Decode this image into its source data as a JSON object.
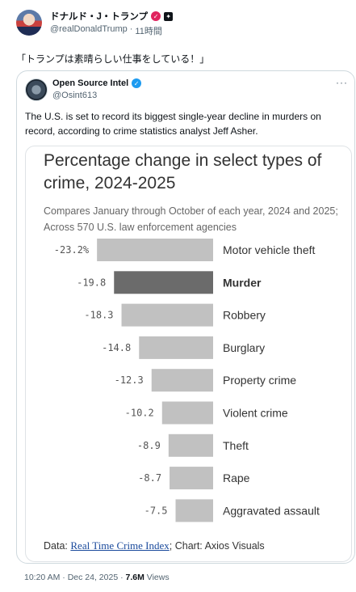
{
  "post": {
    "author": "ドナルド・J・トランプ",
    "handle": "@realDonaldTrump",
    "time_ago": "11時間",
    "text": "「トランプは素晴らしい仕事をしている！」",
    "timestamp": "10:20 AM · Dec 24, 2025 ·",
    "views_count": "7.6M",
    "views_label": "Views",
    "separator": "·"
  },
  "quote": {
    "name": "Open Source Intel",
    "handle": "@Osint613",
    "more": "···",
    "text": "The U.S. is set to record its biggest single-year decline in murders on record, according to crime statistics analyst Jeff Asher."
  },
  "chart": {
    "source_prefix": "Data:",
    "source_link": "Real Time Crime Index",
    "source_suffix": "; Chart: Axios Visuals"
  },
  "chart_data": {
    "type": "bar",
    "title": "Percentage change in select types of crime, 2024-2025",
    "subtitle": "Compares January through October of each year, 2024 and 2025; Across 570 U.S. law enforcement agencies",
    "categories": [
      "Motor vehicle theft",
      "Murder",
      "Robbery",
      "Burglary",
      "Property crime",
      "Violent crime",
      "Theft",
      "Rape",
      "Aggravated assault"
    ],
    "values": [
      -23.2,
      -19.8,
      -18.3,
      -14.8,
      -12.3,
      -10.2,
      -8.9,
      -8.7,
      -7.5
    ],
    "value_labels": [
      "-23.2%",
      "-19.8",
      "-18.3",
      "-14.8",
      "-12.3",
      "-10.2",
      "-8.9",
      "-8.7",
      "-7.5"
    ],
    "highlight": "Murder",
    "colors": {
      "bar": "#c1c1c1",
      "highlight": "#6b6b6b",
      "label": "#555555"
    },
    "orientation": "horizontal",
    "xlim": [
      -25,
      0
    ]
  }
}
